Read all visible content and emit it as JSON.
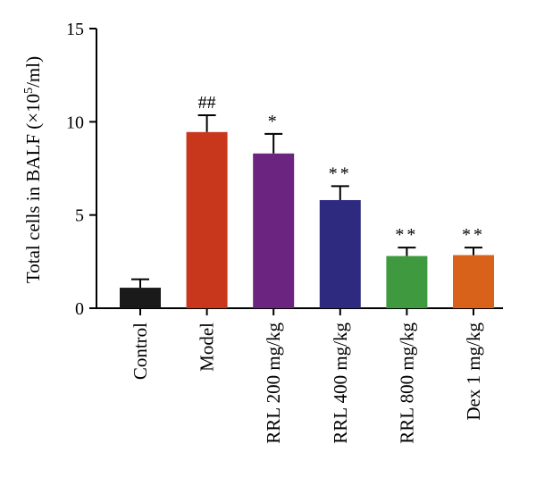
{
  "chart_data": {
    "type": "bar",
    "categories": [
      "Control",
      "Model",
      "RRL 200 mg/kg",
      "RRL 400 mg/kg",
      "RRL 800 mg/kg",
      "Dex 1 mg/kg"
    ],
    "values": [
      1.1,
      9.45,
      8.3,
      5.8,
      2.8,
      2.85
    ],
    "errors": [
      0.45,
      0.9,
      1.05,
      0.75,
      0.45,
      0.4
    ],
    "significance": [
      "",
      "##",
      "*",
      "**",
      "**",
      "**"
    ],
    "colors": [
      "#1a1a1a",
      "#c8361b",
      "#6b2480",
      "#2e2a80",
      "#3f9a3f",
      "#d9621b"
    ],
    "ylabel_prefix": "Total cells in BALF (×10",
    "ylabel_sup": "5",
    "ylabel_suffix": "/ml)",
    "ylim": [
      0,
      15
    ],
    "yticks": [
      "0",
      "5",
      "10",
      "15"
    ],
    "grid": false
  }
}
